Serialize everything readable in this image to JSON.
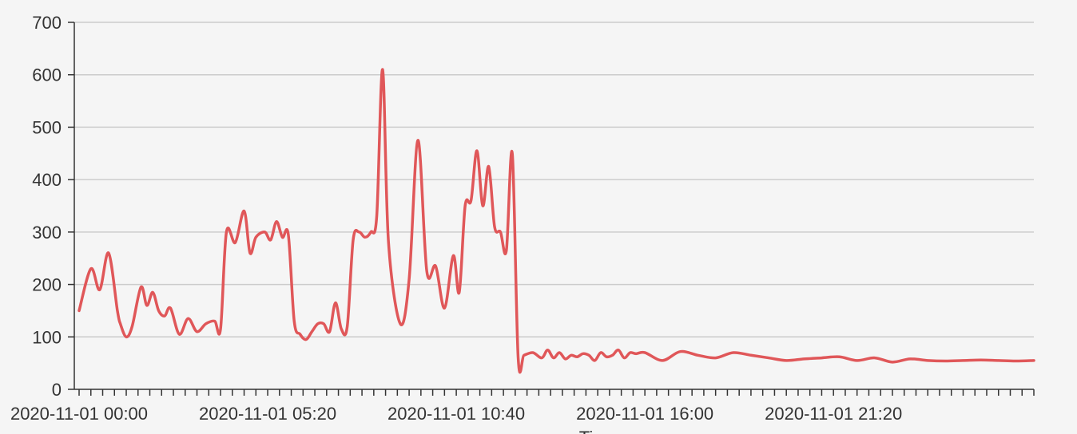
{
  "chart_data": {
    "type": "line",
    "xlabel": "Ti",
    "ylabel": "",
    "ylim": [
      0,
      700
    ],
    "yticks": [
      0,
      100,
      200,
      300,
      400,
      500,
      600,
      700
    ],
    "grid": "horizontal",
    "xlim": [
      "2020-11-01 00:00",
      "2020-11-02 03:00"
    ],
    "xticks": [
      "2020-11-01 00:00",
      "2020-11-01 05:20",
      "2020-11-01 10:40",
      "2020-11-01 16:00",
      "2020-11-01 21:20"
    ],
    "colors": {
      "line": "#e05759",
      "grid": "#cccccc",
      "axis": "#333333"
    },
    "series": [
      {
        "x": [
          "2020-11-01 00:00",
          "2020-11-01 00:20",
          "2020-11-01 00:35",
          "2020-11-01 00:50",
          "2020-11-01 01:05",
          "2020-11-01 01:10",
          "2020-11-01 01:20",
          "2020-11-01 01:30",
          "2020-11-01 01:45",
          "2020-11-01 01:55",
          "2020-11-01 02:05",
          "2020-11-01 02:15",
          "2020-11-01 02:25",
          "2020-11-01 02:35",
          "2020-11-01 02:50",
          "2020-11-01 03:05",
          "2020-11-01 03:20",
          "2020-11-01 03:35",
          "2020-11-01 03:50",
          "2020-11-01 04:00",
          "2020-11-01 04:10",
          "2020-11-01 04:25",
          "2020-11-01 04:40",
          "2020-11-01 04:50",
          "2020-11-01 05:00",
          "2020-11-01 05:15",
          "2020-11-01 05:25",
          "2020-11-01 05:35",
          "2020-11-01 05:45",
          "2020-11-01 05:55",
          "2020-11-01 06:05",
          "2020-11-01 06:15",
          "2020-11-01 06:25",
          "2020-11-01 06:35",
          "2020-11-01 06:45",
          "2020-11-01 06:55",
          "2020-11-01 07:05",
          "2020-11-01 07:15",
          "2020-11-01 07:25",
          "2020-11-01 07:35",
          "2020-11-01 07:45",
          "2020-11-01 07:55",
          "2020-11-01 08:05",
          "2020-11-01 08:15",
          "2020-11-01 08:25",
          "2020-11-01 08:35",
          "2020-11-01 08:45",
          "2020-11-01 09:05",
          "2020-11-01 09:20",
          "2020-11-01 09:35",
          "2020-11-01 09:50",
          "2020-11-01 10:05",
          "2020-11-01 10:20",
          "2020-11-01 10:35",
          "2020-11-01 10:45",
          "2020-11-01 10:55",
          "2020-11-01 11:05",
          "2020-11-01 11:15",
          "2020-11-01 11:25",
          "2020-11-01 11:35",
          "2020-11-01 11:45",
          "2020-11-01 11:55",
          "2020-11-01 12:05",
          "2020-11-01 12:15",
          "2020-11-01 12:25",
          "2020-11-01 12:35",
          "2020-11-01 12:50",
          "2020-11-01 13:05",
          "2020-11-01 13:15",
          "2020-11-01 13:25",
          "2020-11-01 13:35",
          "2020-11-01 13:45",
          "2020-11-01 13:55",
          "2020-11-01 14:05",
          "2020-11-01 14:15",
          "2020-11-01 14:25",
          "2020-11-01 14:35",
          "2020-11-01 14:45",
          "2020-11-01 14:55",
          "2020-11-01 15:05",
          "2020-11-01 15:15",
          "2020-11-01 15:25",
          "2020-11-01 15:35",
          "2020-11-01 15:45",
          "2020-11-01 16:00",
          "2020-11-01 16:30",
          "2020-11-01 17:00",
          "2020-11-01 17:30",
          "2020-11-01 18:00",
          "2020-11-01 18:30",
          "2020-11-01 19:00",
          "2020-11-01 19:30",
          "2020-11-01 20:00",
          "2020-11-01 20:30",
          "2020-11-01 21:00",
          "2020-11-01 21:30",
          "2020-11-01 22:00",
          "2020-11-01 22:30",
          "2020-11-01 23:00",
          "2020-11-01 23:30",
          "2020-11-02 00:00",
          "2020-11-02 00:30",
          "2020-11-02 01:00",
          "2020-11-02 01:30",
          "2020-11-02 02:00",
          "2020-11-02 02:30",
          "2020-11-02 03:00"
        ],
        "y": [
          150,
          230,
          190,
          260,
          150,
          125,
          100,
          120,
          195,
          160,
          185,
          150,
          140,
          155,
          105,
          135,
          110,
          125,
          130,
          115,
          300,
          280,
          340,
          260,
          290,
          300,
          285,
          320,
          290,
          295,
          130,
          105,
          95,
          110,
          125,
          125,
          110,
          165,
          115,
          120,
          285,
          300,
          290,
          300,
          330,
          610,
          280,
          125,
          210,
          475,
          225,
          235,
          155,
          255,
          185,
          350,
          360,
          455,
          350,
          425,
          310,
          300,
          265,
          450,
          60,
          65,
          70,
          60,
          75,
          60,
          70,
          58,
          65,
          62,
          68,
          65,
          55,
          70,
          62,
          65,
          75,
          60,
          70,
          68,
          70,
          55,
          72,
          65,
          60,
          70,
          65,
          60,
          55,
          58,
          60,
          62,
          55,
          60,
          52,
          58,
          55,
          54,
          55,
          56,
          55,
          54,
          55
        ]
      }
    ]
  }
}
